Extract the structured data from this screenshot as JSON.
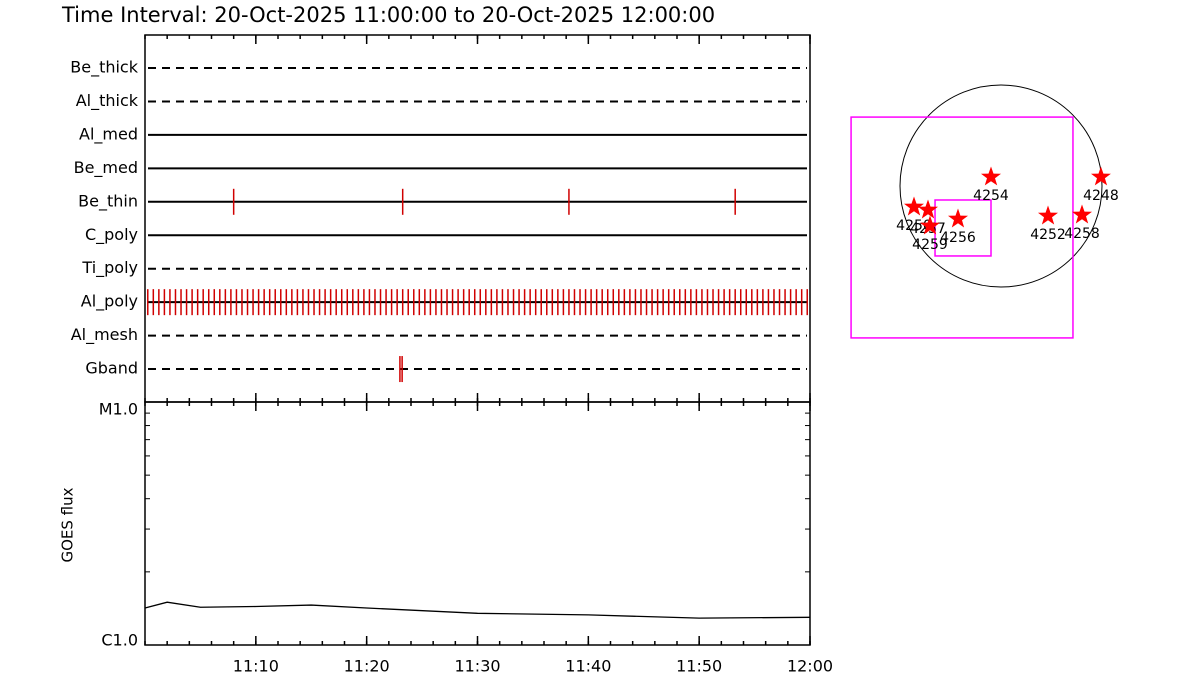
{
  "chart_data": [
    {
      "type": "timeline",
      "title": "Time Interval: 20-Oct-2025 11:00:00 to 20-Oct-2025 12:00:00",
      "categories": [
        "Be_thick",
        "Al_thick",
        "Al_med",
        "Be_med",
        "Be_thin",
        "C_poly",
        "Ti_poly",
        "Al_poly",
        "Al_mesh",
        "Gband"
      ],
      "line_styles": [
        "dashed",
        "dashed",
        "solid",
        "solid",
        "solid",
        "solid",
        "dashed",
        "solid",
        "dashed",
        "dashed"
      ],
      "color": "#d00000",
      "events": [
        [],
        [],
        [],
        [],
        [
          "11:08:00",
          "11:23:15",
          "11:38:15",
          "11:53:15"
        ],
        [],
        [],
        [
          "11:00:15",
          "11:00:45",
          "11:01:15",
          "11:01:45",
          "11:02:15",
          "11:02:45",
          "11:03:15",
          "11:03:45",
          "11:04:15",
          "11:04:45",
          "11:05:15",
          "11:05:45",
          "11:06:15",
          "11:06:45",
          "11:07:15",
          "11:07:45",
          "11:08:15",
          "11:08:45",
          "11:09:15",
          "11:09:45",
          "11:10:15",
          "11:10:45",
          "11:11:15",
          "11:11:45",
          "11:12:15",
          "11:12:45",
          "11:13:15",
          "11:13:45",
          "11:14:15",
          "11:14:45",
          "11:15:15",
          "11:15:45",
          "11:16:15",
          "11:16:45",
          "11:17:15",
          "11:17:45",
          "11:18:15",
          "11:18:45",
          "11:19:15",
          "11:19:45",
          "11:20:15",
          "11:20:45",
          "11:21:15",
          "11:21:45",
          "11:22:15",
          "11:22:45",
          "11:23:15",
          "11:23:45",
          "11:24:15",
          "11:24:45",
          "11:25:15",
          "11:25:45",
          "11:26:15",
          "11:26:45",
          "11:27:15",
          "11:27:45",
          "11:28:15",
          "11:28:45",
          "11:29:15",
          "11:29:45",
          "11:30:15",
          "11:30:45",
          "11:31:15",
          "11:31:45",
          "11:32:15",
          "11:32:45",
          "11:33:15",
          "11:33:45",
          "11:34:15",
          "11:34:45",
          "11:35:15",
          "11:35:45",
          "11:36:15",
          "11:36:45",
          "11:37:15",
          "11:37:45",
          "11:38:15",
          "11:38:45",
          "11:39:15",
          "11:39:45",
          "11:40:15",
          "11:40:45",
          "11:41:15",
          "11:41:45",
          "11:42:15",
          "11:42:45",
          "11:43:15",
          "11:43:45",
          "11:44:15",
          "11:44:45",
          "11:45:15",
          "11:45:45",
          "11:46:15",
          "11:46:45",
          "11:47:15",
          "11:47:45",
          "11:48:15",
          "11:48:45",
          "11:49:15",
          "11:49:45",
          "11:50:15",
          "11:50:45",
          "11:51:15",
          "11:51:45",
          "11:52:15",
          "11:52:45",
          "11:53:15",
          "11:53:45",
          "11:54:15",
          "11:54:45",
          "11:55:15",
          "11:55:45",
          "11:56:15",
          "11:56:45",
          "11:57:15",
          "11:57:45",
          "11:58:15",
          "11:58:45",
          "11:59:15",
          "11:59:45"
        ],
        [],
        [
          "11:23:00",
          "11:23:12"
        ]
      ]
    },
    {
      "type": "line",
      "ylabel": "GOES flux",
      "x": [
        "11:00",
        "11:02",
        "11:05",
        "11:10",
        "11:15",
        "11:20",
        "11:30",
        "11:40",
        "11:50",
        "12:00"
      ],
      "values": [
        1.42e-06,
        1.5e-06,
        1.43e-06,
        1.44e-06,
        1.46e-06,
        1.42e-06,
        1.35e-06,
        1.33e-06,
        1.29e-06,
        1.3e-06
      ],
      "color": "#000000",
      "xlim": [
        "11:00",
        "12:00"
      ],
      "xticks": [
        "11:10",
        "11:20",
        "11:30",
        "11:40",
        "11:50",
        "12:00"
      ],
      "log_y": true,
      "ylim": [
        1e-06,
        1e-05
      ],
      "yticks": [
        {
          "value": 1e-06,
          "label": "C1.0"
        },
        {
          "value": 1e-05,
          "label": "M1.0"
        }
      ]
    },
    {
      "type": "scatter",
      "solar_radius": 960,
      "labels": [
        "4248",
        "4254",
        "4256",
        "4252",
        "4258",
        "4250",
        "4257",
        "4259"
      ],
      "x": [
        950,
        -95,
        -409,
        447,
        770,
        -827,
        -694,
        -675
      ],
      "y": [
        86,
        86,
        -314,
        -285,
        -276,
        -200,
        -228,
        -380
      ],
      "color": "#ff0000",
      "box_color": "#ff00ff",
      "boxes": [
        {
          "x": [
            -1425,
            684
          ],
          "y": [
            -1444,
            655
          ]
        },
        {
          "x": [
            -627,
            -95
          ],
          "y": [
            -665,
            -133
          ]
        }
      ]
    }
  ]
}
